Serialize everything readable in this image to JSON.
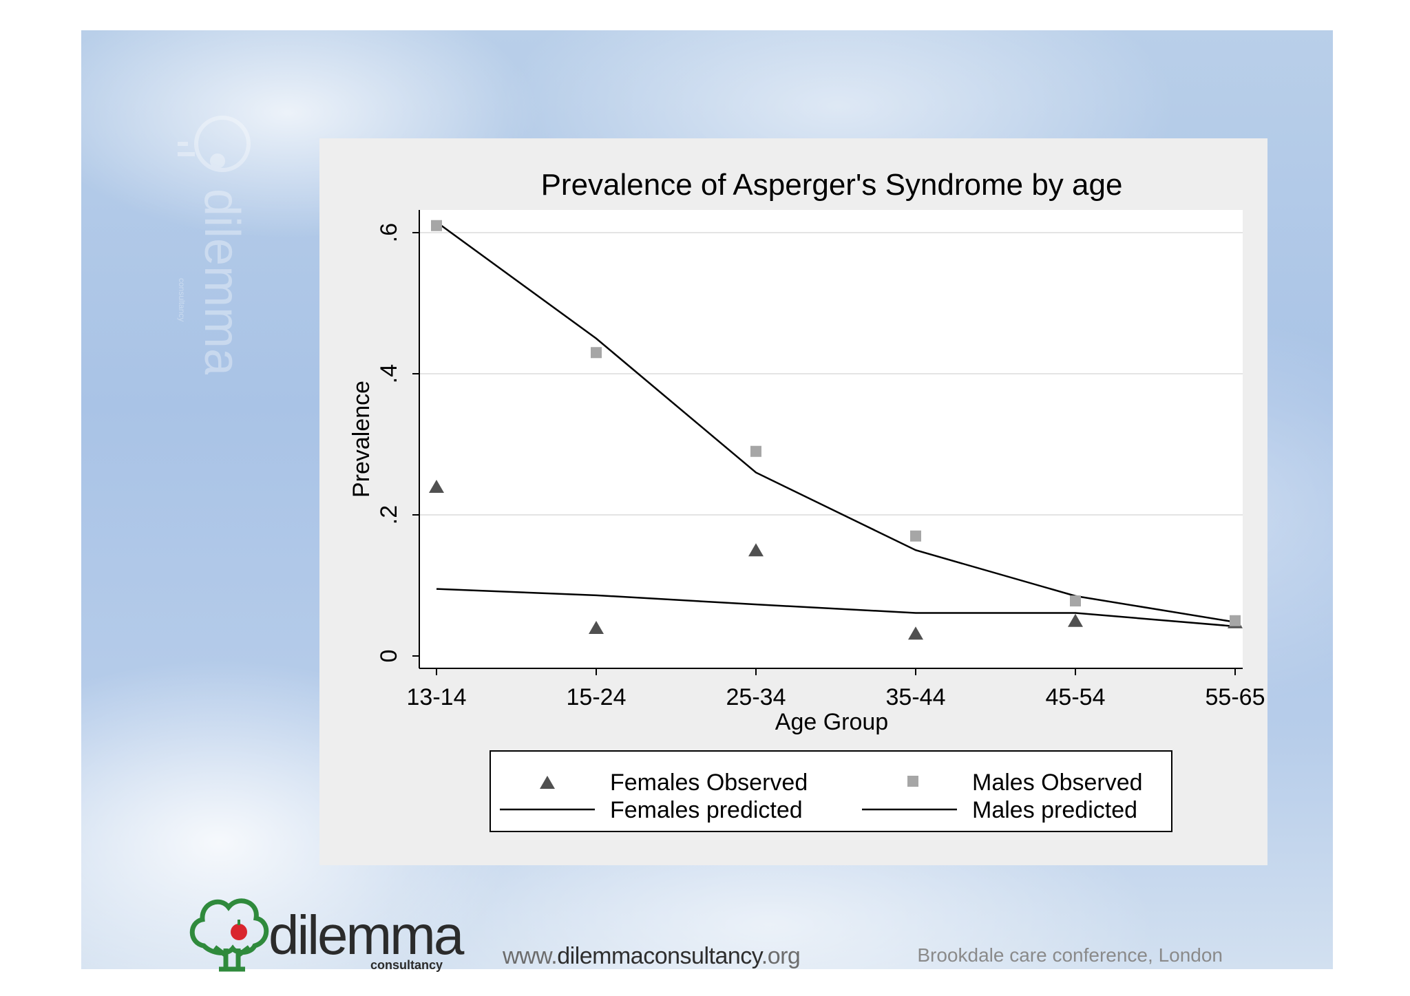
{
  "slide": {
    "watermark_text": "dilemma",
    "watermark_subtext": "consultancy",
    "logo_text": "dilemma",
    "logo_subtext": "consultancy",
    "url_prefix": "www.",
    "url_domain": "dilemmaconsultancy",
    "url_suffix": ".org",
    "event_text": "Brookdale care conference, London"
  },
  "colors": {
    "females_marker": "#505050",
    "males_marker": "#a6a6a6",
    "predicted_line": "#000000",
    "logo_green": "#2f8a3c",
    "logo_apple": "#d9262e"
  },
  "chart_data": {
    "type": "line",
    "title": "Prevalence of Asperger's Syndrome by age",
    "xlabel": "Age Group",
    "ylabel": "Prevalence",
    "categories": [
      "13-14",
      "15-24",
      "25-34",
      "35-44",
      "45-54",
      "55-65"
    ],
    "ylim": [
      0,
      0.62
    ],
    "yticks": [
      0,
      0.2,
      0.4,
      0.6
    ],
    "ytick_labels": [
      "0",
      ".2",
      ".4",
      ".6"
    ],
    "grid": true,
    "legend_position": "bottom",
    "series": [
      {
        "name": "Females Observed",
        "kind": "scatter",
        "marker": "triangle",
        "values": [
          0.24,
          0.04,
          0.15,
          0.032,
          0.05,
          0.048
        ]
      },
      {
        "name": "Males Observed",
        "kind": "scatter",
        "marker": "square",
        "values": [
          0.61,
          0.43,
          0.29,
          0.17,
          0.078,
          0.05
        ]
      },
      {
        "name": "Females predicted",
        "kind": "line",
        "values": [
          0.095,
          0.086,
          0.073,
          0.061,
          0.061,
          0.042
        ]
      },
      {
        "name": "Males predicted",
        "kind": "line",
        "values": [
          0.615,
          0.45,
          0.26,
          0.15,
          0.085,
          0.048
        ]
      }
    ]
  }
}
